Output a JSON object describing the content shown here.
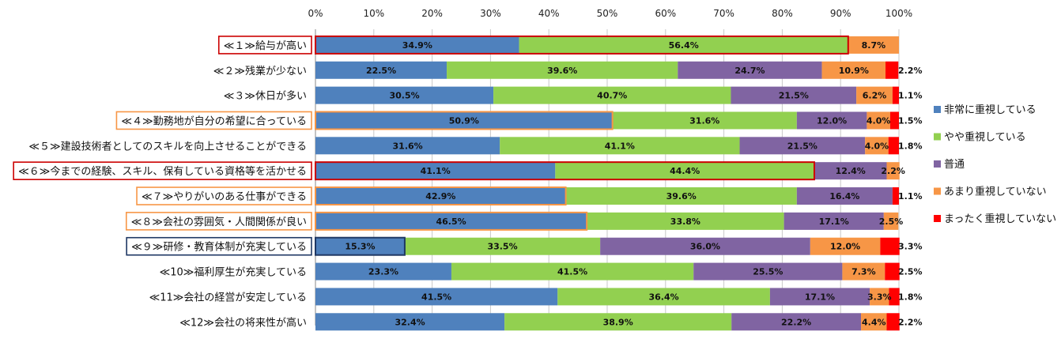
{
  "chart_data": {
    "type": "bar",
    "orientation": "horizontal",
    "stacked": "percent",
    "title": "",
    "xlabel": "",
    "ylabel": "",
    "xlim": [
      0,
      100
    ],
    "x_ticks": [
      "0%",
      "10%",
      "20%",
      "30%",
      "40%",
      "50%",
      "60%",
      "70%",
      "80%",
      "90%",
      "100%"
    ],
    "grid": true,
    "legend_position": "right",
    "categories": [
      "≪１≫給与が高い",
      "≪２≫残業が少ない",
      "≪３≫休日が多い",
      "≪４≫勤務地が自分の希望に合っている",
      "≪５≫建設技術者としてのスキルを向上させることができる",
      "≪６≫今までの経験、スキル、保有している資格等を活かせる",
      "≪７≫やりがいのある仕事ができる",
      "≪８≫会社の雰囲気・人間関係が良い",
      "≪９≫研修・教育体制が充実している",
      "≪10≫福利厚生が充実している",
      "≪11≫会社の経営が安定している",
      "≪12≫会社の将来性が高い"
    ],
    "highlight_colors": [
      "#cc0000",
      null,
      null,
      "#f79646",
      null,
      "#cc0000",
      "#f79646",
      "#f79646",
      "#1f3864",
      null,
      null,
      null
    ],
    "series": [
      {
        "name": "非常に重視している",
        "color": "#4f81bd",
        "values": [
          34.9,
          22.5,
          30.5,
          50.9,
          31.6,
          41.1,
          42.9,
          46.5,
          15.3,
          23.3,
          41.5,
          32.4
        ]
      },
      {
        "name": "やや重視している",
        "color": "#92d050",
        "values": [
          56.4,
          39.6,
          40.7,
          31.6,
          41.1,
          44.4,
          39.6,
          33.8,
          33.5,
          41.5,
          36.4,
          38.9
        ]
      },
      {
        "name": "普通",
        "color": "#8064a2",
        "values": [
          0,
          24.7,
          21.5,
          12.0,
          21.5,
          12.4,
          16.4,
          17.1,
          36.0,
          25.5,
          17.1,
          22.2
        ]
      },
      {
        "name": "あまり重視していない",
        "color": "#f79646",
        "values": [
          8.7,
          10.9,
          6.2,
          4.0,
          4.0,
          2.2,
          0,
          2.5,
          12.0,
          7.3,
          3.3,
          4.4
        ]
      },
      {
        "name": "まったく重視していない",
        "color": "#ff0000",
        "values": [
          0,
          2.2,
          1.1,
          1.5,
          1.8,
          0,
          1.1,
          0,
          3.3,
          2.5,
          1.8,
          2.2
        ]
      }
    ]
  }
}
